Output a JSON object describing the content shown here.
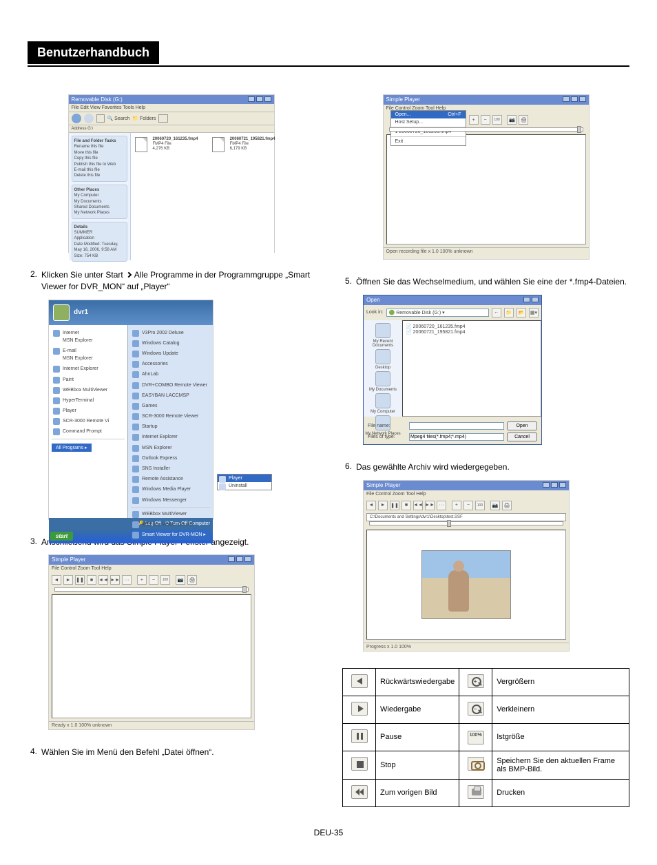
{
  "page": {
    "title": "Benutzerhandbuch",
    "footer": "DEU-35"
  },
  "steps": {
    "s2": {
      "num": "2.",
      "text_a": "Klicken Sie unter Start",
      "text_b": "Alle Programme in der Programmgruppe „Smart Viewer for DVR_MON“ auf „Player“"
    },
    "s3": {
      "num": "3.",
      "text": "Anschließend wird das Simple Player-Fenster angezeigt."
    },
    "s4": {
      "num": "4.",
      "text": "Wählen Sie im Menü den Befehl „Datei öffnen“."
    },
    "s5": {
      "num": "5.",
      "text": "Öffnen Sie das Wechselmedium, und wählen Sie eine der *.fmp4-Dateien."
    },
    "s6": {
      "num": "6.",
      "text": "Das gewählte Archiv wird wiedergegeben."
    }
  },
  "explorer": {
    "title": "Removable Disk (G:)",
    "menu": "File   Edit   View   Favorites   Tools   Help",
    "addr": "Address  G:\\",
    "side": {
      "grp1_title": "File and Folder Tasks",
      "grp1_items": "Rename this file\nMove this file\nCopy this file\nPublish this file to Web\nE-mail this file\nDelete this file",
      "grp2_title": "Other Places",
      "grp2_items": "My Computer\nMy Documents\nShared Documents\nMy Network Places",
      "grp3_title": "Details",
      "grp3_items": "SUMMER\nApplication\nDate Modified: Tuesday, May 16, 2006, 9:58 AM\nSize: 754 KB"
    },
    "file1": {
      "name": "20060720_161235.fmp4",
      "meta": "FMP4 File\n4,276 KB"
    },
    "file2": {
      "name": "20060721_195821.fmp4",
      "meta": "FMP4 File\n6,179 KB"
    }
  },
  "startmenu": {
    "user": "dvr1",
    "left": [
      "Internet\nMSN Explorer",
      "E-mail\nMSN Explorer",
      "Internet Explorer",
      "Paint",
      "WEBbox MultiViewer",
      "HyperTerminal",
      "Player",
      "SCR-3000 Remote Vi",
      "Command Prompt"
    ],
    "all": "All Programs",
    "right": [
      "V3Pro 2002 Deluxe",
      "Windows Catalog",
      "Windows Update",
      "Accessories",
      "AhnLab",
      "DVR+COMBO Remote Viewer",
      "EASYBAN LACCMSP",
      "Games",
      "SCR-3000 Remote Viewer",
      "Startup",
      "Internet Explorer",
      "MSN Explorer",
      "Outlook Express",
      "SNS Installer",
      "Remote Assistance",
      "Windows Media Player",
      "Windows Messenger",
      "",
      "WEBbox MultiViewer",
      "WEBbox Viewer Control"
    ],
    "sel": "Smart Viewer for DVR-MON",
    "sub": {
      "player": "Player",
      "uninstall": "Uninstall"
    },
    "logoff": "Log Off",
    "turnoff": "Turn Off Computer",
    "start": "start"
  },
  "simple_player": {
    "title": "Simple Player",
    "menu": "File   Control   Zoom   Tool   Help",
    "status_ready": "Ready           x 1.0  100%   unknown",
    "status_prog": "Progress        x 1.0  100%",
    "file_menu": {
      "open": "Open...",
      "open_sc": "Ctrl+F",
      "host": "Host Setup...",
      "recent": "1 20060720_161235.fmp4",
      "exit": "Exit"
    },
    "path": "C:\\Documents and Settings\\dvr1\\Desktop\\test.SSF"
  },
  "open_dialog": {
    "title": "Open",
    "lookin_lbl": "Look in:",
    "lookin_val": "Removable Disk (G:)",
    "side": [
      "My Recent Documents",
      "Desktop",
      "My Documents",
      "My Computer",
      "My Network Places"
    ],
    "files": [
      "20060720_161235.fmp4",
      "20060721_195821.fmp4"
    ],
    "fname_lbl": "File name:",
    "ftype_lbl": "Files of type:",
    "ftype_val": "Mpeg4 files(*.fmp4;*.mp4)",
    "open_btn": "Open",
    "cancel_btn": "Cancel"
  },
  "controls": {
    "rows": [
      {
        "l": "Rückwärtswiedergabe",
        "r": "Vergrößern"
      },
      {
        "l": "Wiedergabe",
        "r": "Verkleinern"
      },
      {
        "l": "Pause",
        "r": "Istgröße"
      },
      {
        "l": "Stop",
        "r": "Speichern Sie den aktuellen Frame als BMP-Bild."
      },
      {
        "l": "Zum vorigen Bild",
        "r": "Drucken"
      }
    ],
    "hundred": "100%"
  }
}
